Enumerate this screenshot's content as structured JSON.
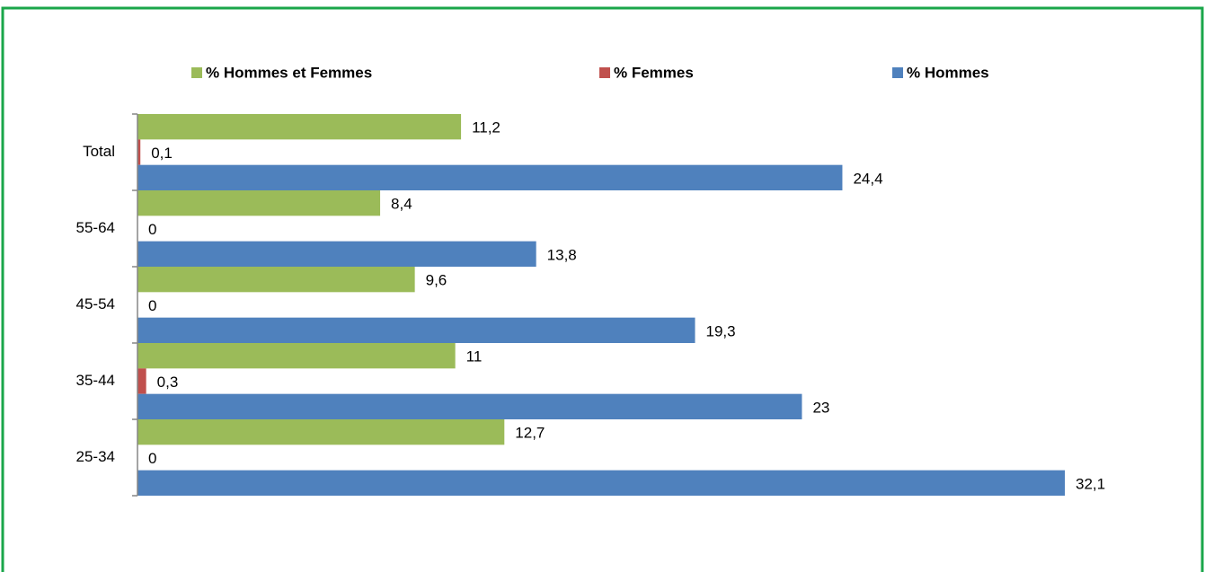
{
  "chart_data": {
    "type": "bar",
    "orientation": "horizontal",
    "legend": "top",
    "categories": [
      "Total",
      "55-64",
      "45-54",
      "35-44",
      "25-34"
    ],
    "series": [
      {
        "name": "% Hommes et Femmes",
        "color": "#9bbb59",
        "values": [
          11.2,
          8.4,
          9.6,
          11,
          12.7
        ],
        "value_labels": [
          "11,2",
          "8,4",
          "9,6",
          "11",
          "12,7"
        ]
      },
      {
        "name": "% Femmes",
        "color": "#c0504d",
        "values": [
          0.1,
          0,
          0,
          0.3,
          0
        ],
        "value_labels": [
          "0,1",
          "0",
          "0",
          "0,3",
          "0"
        ]
      },
      {
        "name": "% Hommes",
        "color": "#4f81bd",
        "values": [
          24.4,
          13.8,
          19.3,
          23,
          32.1
        ],
        "value_labels": [
          "24,4",
          "13,8",
          "19,3",
          "23",
          "32,1"
        ]
      }
    ]
  }
}
